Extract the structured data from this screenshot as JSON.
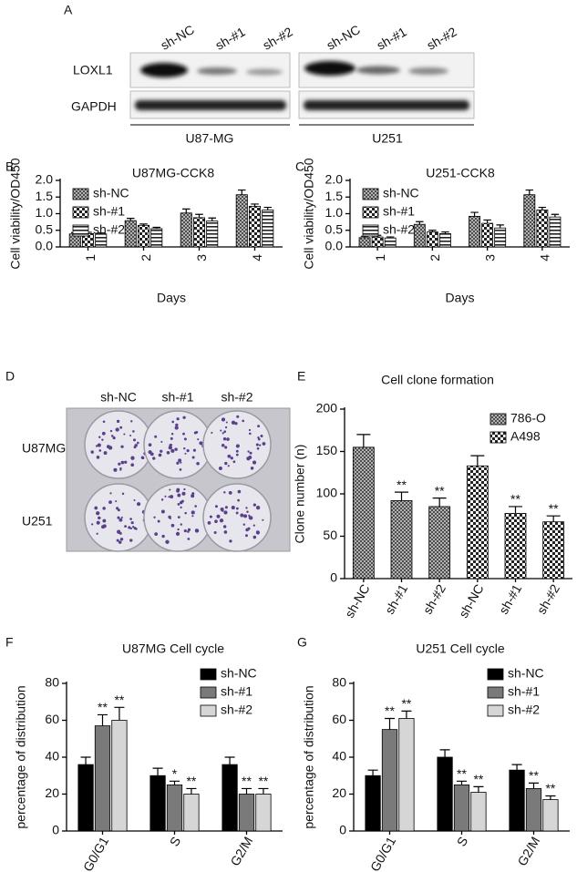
{
  "panel_letters": [
    "A",
    "B",
    "C",
    "D",
    "E",
    "F",
    "G"
  ],
  "western_blot": {
    "lanes": [
      "sh-NC",
      "sh-#1",
      "sh-#2",
      "sh-NC",
      "sh-#1",
      "sh-#2"
    ],
    "rows": [
      "LOXL1",
      "GAPDH"
    ],
    "groups": [
      "U87-MG",
      "U251"
    ]
  },
  "colony": {
    "columns": [
      "sh-NC",
      "sh-#1",
      "sh-#2"
    ],
    "rows": [
      "U87MG",
      "U251"
    ]
  },
  "chart_data": [
    {
      "type": "bar",
      "title": "U87MG-CCK8",
      "y_label": "Cell viability/OD450",
      "x_label": "Days",
      "categories": [
        "1",
        "2",
        "3",
        "4"
      ],
      "ylim": [
        0,
        2
      ],
      "yticks": [
        {
          "value": 0,
          "label": "0.0"
        },
        0.5,
        {
          "value": 1,
          "label": "1.0"
        },
        1.5,
        {
          "value": 2,
          "label": "2.0"
        }
      ],
      "legend": "top-left",
      "series": [
        {
          "name": "sh-NC",
          "pattern": "crosshatch",
          "values": [
            0.39,
            0.79,
            1.02,
            1.57
          ],
          "errors": [
            0.04,
            0.07,
            0.12,
            0.14
          ]
        },
        {
          "name": "sh-#1",
          "pattern": "checker",
          "values": [
            0.4,
            0.65,
            0.88,
            1.22
          ],
          "errors": [
            0.04,
            0.04,
            0.1,
            0.07
          ]
        },
        {
          "name": "sh-#2",
          "pattern": "hstripe",
          "values": [
            0.39,
            0.55,
            0.78,
            1.11
          ],
          "errors": [
            0.03,
            0.04,
            0.09,
            0.08
          ]
        }
      ]
    },
    {
      "type": "bar",
      "title": "U251-CCK8",
      "y_label": "Cell viability/OD450",
      "x_label": "Days",
      "categories": [
        "1",
        "2",
        "3",
        "4"
      ],
      "ylim": [
        0,
        2
      ],
      "yticks": [
        {
          "value": 0,
          "label": "0.0"
        },
        0.5,
        {
          "value": 1,
          "label": "1.0"
        },
        1.5,
        {
          "value": 2,
          "label": "2.0"
        }
      ],
      "legend": "top-left",
      "series": [
        {
          "name": "sh-NC",
          "pattern": "crosshatch",
          "values": [
            0.28,
            0.68,
            0.92,
            1.57
          ],
          "errors": [
            0.04,
            0.08,
            0.12,
            0.14
          ]
        },
        {
          "name": "sh-#1",
          "pattern": "checker",
          "values": [
            0.3,
            0.45,
            0.71,
            1.11
          ],
          "errors": [
            0.05,
            0.05,
            0.1,
            0.08
          ]
        },
        {
          "name": "sh-#2",
          "pattern": "hstripe",
          "values": [
            0.27,
            0.4,
            0.57,
            0.9
          ],
          "errors": [
            0.03,
            0.05,
            0.09,
            0.08
          ]
        }
      ]
    },
    {
      "type": "bar",
      "title": "Cell clone formation",
      "y_label": "Clone number (n)",
      "categories": [
        "sh-NC",
        "sh-#1",
        "sh-#2",
        "sh-NC",
        "sh-#1",
        "sh-#2"
      ],
      "ylim": [
        0,
        200
      ],
      "yticks": [
        0,
        50,
        100,
        150,
        200
      ],
      "legend": "top-right",
      "series": [
        {
          "name": "786-O",
          "pattern": "crosshatch",
          "values": [
            155,
            92,
            85,
            null,
            null,
            null
          ],
          "errors": [
            15,
            10,
            10,
            null,
            null,
            null
          ],
          "sig": [
            null,
            "**",
            "**",
            null,
            null,
            null
          ]
        },
        {
          "name": "A498",
          "pattern": "checker",
          "values": [
            null,
            null,
            null,
            133,
            77,
            67
          ],
          "errors": [
            null,
            null,
            null,
            12,
            8,
            7
          ],
          "sig": [
            null,
            null,
            null,
            null,
            "**",
            "**"
          ]
        }
      ]
    },
    {
      "type": "bar",
      "title": "U87MG Cell cycle",
      "y_label": "percentage of distribution",
      "categories": [
        "G0/G1",
        "S",
        "G2/M"
      ],
      "ylim": [
        0,
        80
      ],
      "yticks": [
        0,
        20,
        40,
        60,
        80
      ],
      "legend": "top-right",
      "series": [
        {
          "name": "sh-NC",
          "color": "#000000",
          "values": [
            36,
            30,
            36
          ],
          "errors": [
            4,
            4,
            4
          ]
        },
        {
          "name": "sh-#1",
          "color": "#7a7a7a",
          "values": [
            57,
            25,
            20
          ],
          "errors": [
            6,
            2,
            3
          ],
          "sig": [
            "**",
            "*",
            "**"
          ]
        },
        {
          "name": "sh-#2",
          "color": "#d6d6d6",
          "values": [
            60,
            20,
            20
          ],
          "errors": [
            7,
            3,
            3
          ],
          "sig": [
            "**",
            "**",
            "**"
          ]
        }
      ]
    },
    {
      "type": "bar",
      "title": "U251 Cell cycle",
      "y_label": "percentage of distribution",
      "categories": [
        "G0/G1",
        "S",
        "G2/M"
      ],
      "ylim": [
        0,
        80
      ],
      "yticks": [
        0,
        20,
        40,
        60,
        80
      ],
      "legend": "top-right",
      "series": [
        {
          "name": "sh-NC",
          "color": "#000000",
          "values": [
            30,
            40,
            33
          ],
          "errors": [
            3,
            4,
            3
          ]
        },
        {
          "name": "sh-#1",
          "color": "#7a7a7a",
          "values": [
            55,
            25,
            23
          ],
          "errors": [
            6,
            2,
            3
          ],
          "sig": [
            "**",
            "**",
            "**"
          ]
        },
        {
          "name": "sh-#2",
          "color": "#d6d6d6",
          "values": [
            61,
            21,
            17
          ],
          "errors": [
            4,
            3,
            2
          ],
          "sig": [
            "**",
            "**",
            "**"
          ]
        }
      ]
    }
  ]
}
